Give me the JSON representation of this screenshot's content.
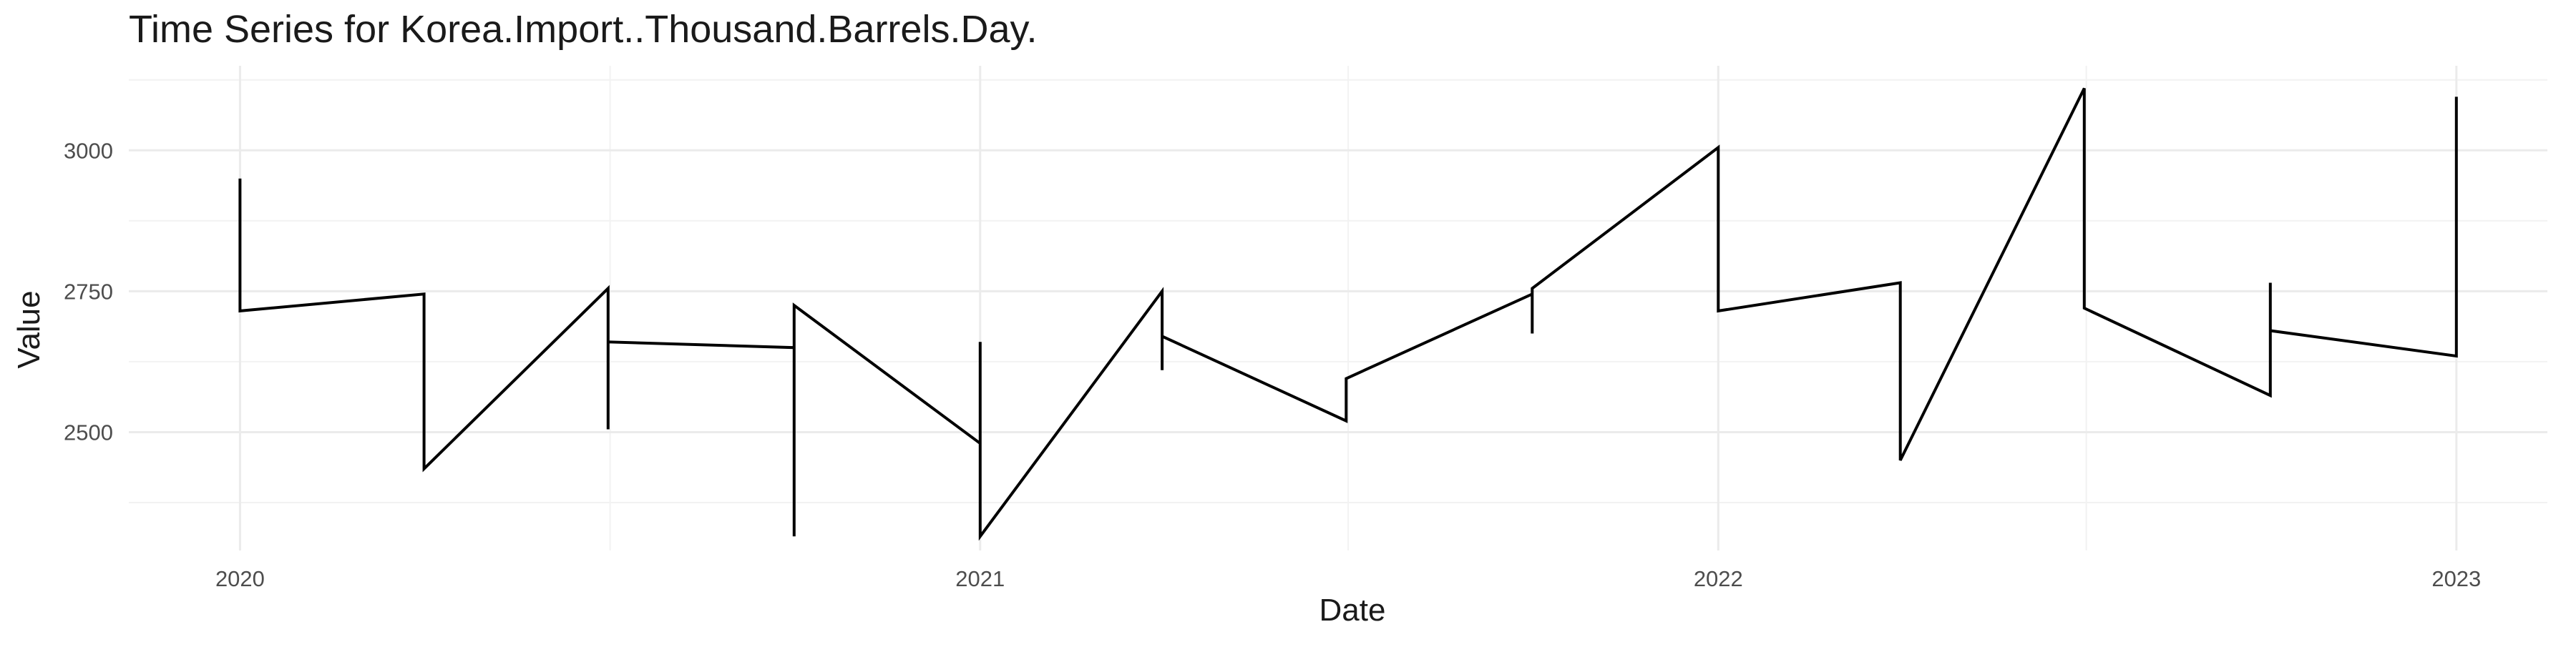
{
  "chart_data": {
    "type": "line",
    "title": "Time Series for Korea.Import..Thousand.Barrels.Day.",
    "xlabel": "Date",
    "ylabel": "Value",
    "x_ticks": [
      "2020",
      "2021",
      "2022",
      "2023"
    ],
    "y_ticks": [
      2500,
      2750,
      3000
    ],
    "xlim": [
      "2019-11-07",
      "2023-02-15"
    ],
    "ylim": [
      2290,
      3150
    ],
    "grid": true,
    "series": [
      {
        "x": [
          "2020-01-01",
          "2020-01-01",
          "2020-01-01",
          "2020-04-01",
          "2020-04-01",
          "2020-07-01",
          "2020-07-01",
          "2020-07-01",
          "2020-10-01",
          "2020-10-01",
          "2020-10-01",
          "2021-01-01",
          "2021-01-01",
          "2021-01-01",
          "2021-04-01",
          "2021-04-01",
          "2021-04-01",
          "2021-07-01",
          "2021-07-01",
          "2021-10-01",
          "2021-10-01",
          "2021-10-01",
          "2022-01-01",
          "2022-01-01",
          "2022-04-01",
          "2022-04-01",
          "2022-07-01",
          "2022-07-01",
          "2022-10-01",
          "2022-10-01",
          "2022-10-01",
          "2023-01-01",
          "2023-01-01",
          "2023-01-01"
        ],
        "values": [
          2940,
          2950,
          2715,
          2745,
          2435,
          2755,
          2505,
          2660,
          2650,
          2315,
          2725,
          2480,
          2660,
          2315,
          2750,
          2610,
          2670,
          2520,
          2595,
          2745,
          2675,
          2755,
          3005,
          2715,
          2765,
          2450,
          3110,
          2720,
          2565,
          2765,
          2680,
          2635,
          3095,
          2960
        ]
      }
    ]
  }
}
